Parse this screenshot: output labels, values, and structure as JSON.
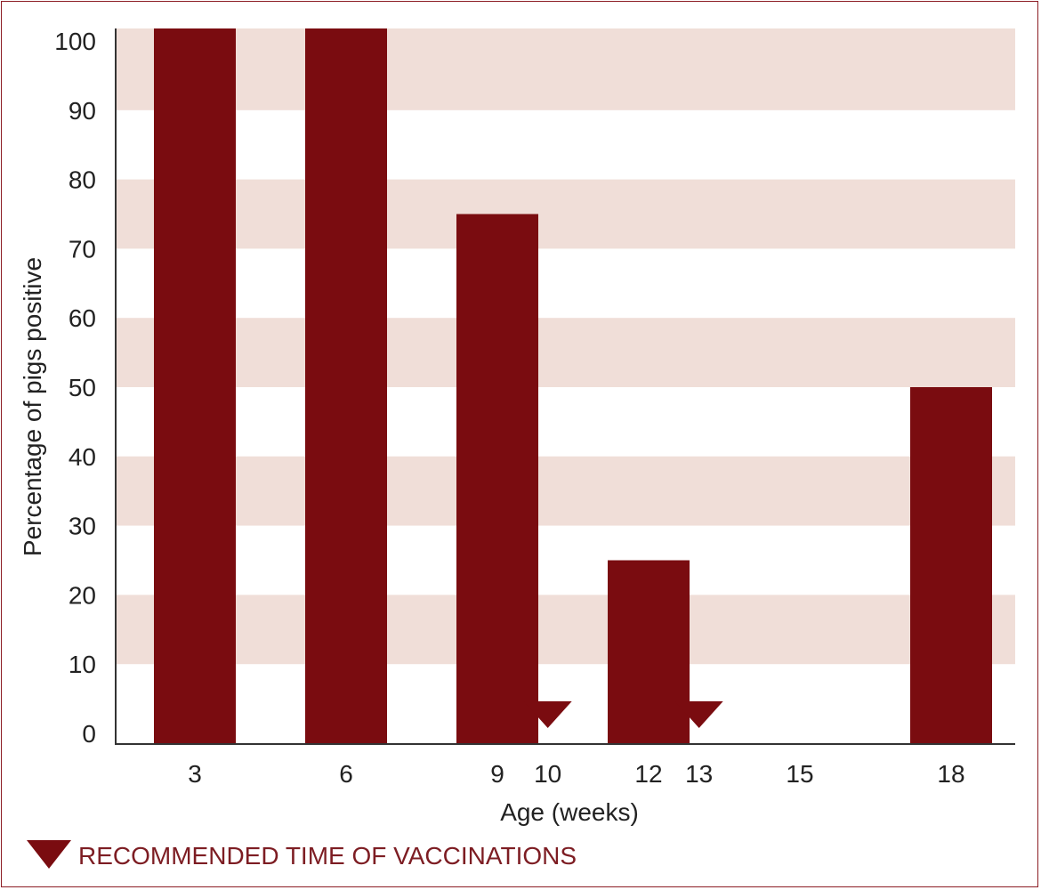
{
  "chart_data": {
    "type": "bar",
    "xlabel": "Age (weeks)",
    "ylabel": "Percentage of pigs positive",
    "ylim": [
      0,
      100
    ],
    "yticks": [
      0,
      10,
      20,
      30,
      40,
      50,
      60,
      70,
      80,
      90,
      100
    ],
    "x_ticks": [
      {
        "value": 3,
        "label": "3",
        "highlight": false
      },
      {
        "value": 6,
        "label": "6",
        "highlight": false
      },
      {
        "value": 9,
        "label": "9",
        "highlight": false
      },
      {
        "value": 10,
        "label": "10",
        "highlight": true
      },
      {
        "value": 12,
        "label": "12",
        "highlight": false
      },
      {
        "value": 13,
        "label": "13",
        "highlight": true
      },
      {
        "value": 15,
        "label": "15",
        "highlight": false
      },
      {
        "value": 18,
        "label": "18",
        "highlight": false
      }
    ],
    "series": [
      {
        "x": [
          3,
          6,
          9,
          12,
          15,
          18
        ],
        "values": [
          100,
          100,
          75,
          25,
          0,
          50
        ]
      }
    ],
    "vaccination_weeks": [
      10,
      13
    ],
    "legend": {
      "label": "RECOMMENDED TIME OF VACCINATIONS",
      "placement": "bottom-left"
    },
    "grid": "alternating horizontal bands",
    "colors": {
      "bar": "#7a0c10",
      "band": "#f0ded8",
      "marker": "#7a0c10",
      "highlight_text": "#8c1d24",
      "axis": "#333333"
    }
  }
}
